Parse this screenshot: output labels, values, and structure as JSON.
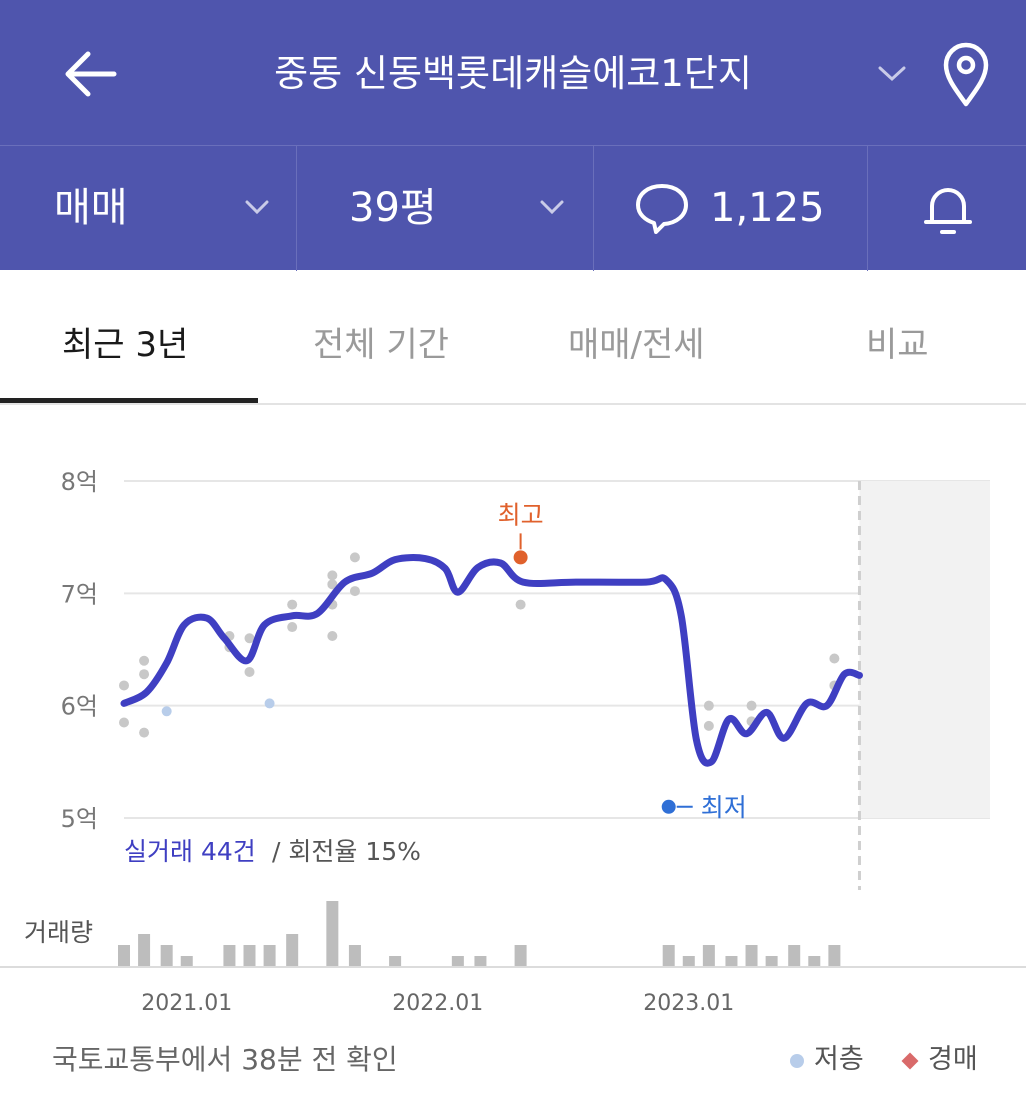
{
  "header": {
    "title": "중동 신동백롯데캐슬에코1단지",
    "back_icon": "arrow-left-icon",
    "dropdown_icon": "chevron-down-icon",
    "location_icon": "map-pin-icon"
  },
  "filters": {
    "trade_type": "매매",
    "size": "39평",
    "comment_count": "1,125",
    "comment_icon": "speech-bubble-icon",
    "alert_icon": "bell-icon"
  },
  "tabs": [
    {
      "label": "최근 3년",
      "active": true
    },
    {
      "label": "전체 기간",
      "active": false
    },
    {
      "label": "매매/전세",
      "active": false
    },
    {
      "label": "비교",
      "active": false
    }
  ],
  "summary": {
    "deals_label": "실거래 44건",
    "turnover_label": "/ 회전율 15%"
  },
  "volume_label": "거래량",
  "footer": {
    "source_note": "국토교통부에서 38분 전 확인",
    "legend_low": "저층",
    "legend_auction": "경매"
  },
  "colors": {
    "header_bg": "#4f55ad",
    "line": "#3f3fc2",
    "high_marker": "#e0612c",
    "low_marker": "#2f6fd6",
    "low_floor_dot": "#b8cdea",
    "auction": "#d96a6a",
    "deal_dot": "#c8c8c8",
    "volume_bar": "#bdbdbd"
  },
  "chart_data": {
    "type": "line",
    "y_unit": "억",
    "ylim": [
      5,
      8
    ],
    "y_ticks": [
      {
        "value": 8,
        "label": "8억"
      },
      {
        "value": 7,
        "label": "7억"
      },
      {
        "value": 6,
        "label": "6억"
      },
      {
        "value": 5,
        "label": "5억"
      }
    ],
    "x_ticks": [
      {
        "value": 2021.0,
        "label": "2021.01"
      },
      {
        "value": 2022.0,
        "label": "2022.01"
      },
      {
        "value": 2023.0,
        "label": "2023.01"
      }
    ],
    "xlim": [
      2020.75,
      2024.2
    ],
    "current": 2023.68,
    "trend": [
      [
        2020.75,
        6.02
      ],
      [
        2020.84,
        6.12
      ],
      [
        2020.92,
        6.38
      ],
      [
        2020.99,
        6.72
      ],
      [
        2021.08,
        6.78
      ],
      [
        2021.15,
        6.6
      ],
      [
        2021.24,
        6.4
      ],
      [
        2021.31,
        6.72
      ],
      [
        2021.42,
        6.8
      ],
      [
        2021.52,
        6.82
      ],
      [
        2021.63,
        7.1
      ],
      [
        2021.74,
        7.18
      ],
      [
        2021.83,
        7.3
      ],
      [
        2021.95,
        7.31
      ],
      [
        2022.03,
        7.22
      ],
      [
        2022.08,
        7.01
      ],
      [
        2022.16,
        7.23
      ],
      [
        2022.25,
        7.27
      ],
      [
        2022.34,
        7.1
      ],
      [
        2022.55,
        7.1
      ],
      [
        2022.83,
        7.1
      ],
      [
        2022.91,
        7.12
      ],
      [
        2022.97,
        6.8
      ],
      [
        2023.03,
        5.7
      ],
      [
        2023.09,
        5.5
      ],
      [
        2023.16,
        5.88
      ],
      [
        2023.23,
        5.75
      ],
      [
        2023.31,
        5.94
      ],
      [
        2023.38,
        5.71
      ],
      [
        2023.47,
        6.02
      ],
      [
        2023.55,
        6.0
      ],
      [
        2023.62,
        6.28
      ],
      [
        2023.68,
        6.27
      ]
    ],
    "deals": [
      [
        2020.75,
        6.18
      ],
      [
        2020.75,
        5.85
      ],
      [
        2020.83,
        6.4
      ],
      [
        2020.83,
        6.28
      ],
      [
        2020.83,
        5.76
      ],
      [
        2021.17,
        6.52
      ],
      [
        2021.17,
        6.62
      ],
      [
        2021.25,
        6.6
      ],
      [
        2021.25,
        6.3
      ],
      [
        2021.42,
        6.9
      ],
      [
        2021.42,
        6.7
      ],
      [
        2021.58,
        6.9
      ],
      [
        2021.58,
        6.62
      ],
      [
        2021.58,
        7.16
      ],
      [
        2021.58,
        7.08
      ],
      [
        2021.67,
        7.32
      ],
      [
        2021.67,
        7.02
      ],
      [
        2022.33,
        6.9
      ],
      [
        2023.08,
        6.0
      ],
      [
        2023.08,
        5.82
      ],
      [
        2023.25,
        6.0
      ],
      [
        2023.25,
        5.86
      ],
      [
        2023.58,
        6.42
      ],
      [
        2023.58,
        6.18
      ]
    ],
    "low_floor": [
      [
        2020.92,
        5.95
      ],
      [
        2021.33,
        6.02
      ]
    ],
    "high": {
      "x": 2022.33,
      "y": 7.32,
      "label": "최고"
    },
    "low": {
      "x": 2022.92,
      "y": 5.1,
      "label": "최저"
    },
    "volume": [
      {
        "x": 2020.75,
        "v": 2
      },
      {
        "x": 2020.83,
        "v": 3
      },
      {
        "x": 2020.92,
        "v": 2
      },
      {
        "x": 2021.0,
        "v": 1
      },
      {
        "x": 2021.17,
        "v": 2
      },
      {
        "x": 2021.25,
        "v": 2
      },
      {
        "x": 2021.33,
        "v": 2
      },
      {
        "x": 2021.42,
        "v": 3
      },
      {
        "x": 2021.58,
        "v": 6
      },
      {
        "x": 2021.67,
        "v": 2
      },
      {
        "x": 2021.83,
        "v": 1
      },
      {
        "x": 2022.08,
        "v": 1
      },
      {
        "x": 2022.17,
        "v": 1
      },
      {
        "x": 2022.33,
        "v": 2
      },
      {
        "x": 2022.92,
        "v": 2
      },
      {
        "x": 2023.0,
        "v": 1
      },
      {
        "x": 2023.08,
        "v": 2
      },
      {
        "x": 2023.17,
        "v": 1
      },
      {
        "x": 2023.25,
        "v": 2
      },
      {
        "x": 2023.33,
        "v": 1
      },
      {
        "x": 2023.42,
        "v": 2
      },
      {
        "x": 2023.5,
        "v": 1
      },
      {
        "x": 2023.58,
        "v": 2
      }
    ]
  }
}
